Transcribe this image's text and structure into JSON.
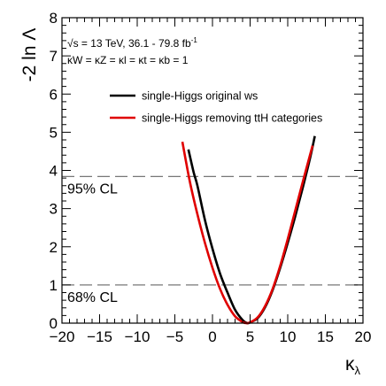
{
  "chart_data": {
    "type": "line",
    "xlabel": "κ",
    "xlabel_sub": "λ",
    "ylabel": "-2 ln Λ",
    "xlim": [
      -20,
      20
    ],
    "ylim": [
      0,
      8
    ],
    "x_ticks": [
      -20,
      -15,
      -10,
      -5,
      0,
      5,
      10,
      15,
      20
    ],
    "x_tick_labels": [
      "−20",
      "−15",
      "−10",
      "−5",
      "0",
      "5",
      "10",
      "15",
      "20"
    ],
    "y_ticks": [
      0,
      1,
      2,
      3,
      4,
      5,
      6,
      7,
      8
    ],
    "y_tick_labels": [
      "0",
      "1",
      "2",
      "3",
      "4",
      "5",
      "6",
      "7",
      "8"
    ],
    "annotations": {
      "line1_pre": "√s = 13 TeV, 36.1 - 79.8 fb",
      "line1_sup": "-1",
      "line2": "κW = κZ = κl = κt = κb = 1"
    },
    "reference_lines": [
      {
        "y": 3.84,
        "label": "95% CL"
      },
      {
        "y": 1.0,
        "label": "68% CL"
      }
    ],
    "legend_position": "top-right",
    "series": [
      {
        "name": "single-Higgs original ws",
        "color": "#000000",
        "x": [
          -3.2,
          -2.5,
          -2.0,
          -1.0,
          0.0,
          1.0,
          2.0,
          3.0,
          4.0,
          4.6,
          5.0,
          6.0,
          7.0,
          8.0,
          9.0,
          10.0,
          11.0,
          12.0,
          13.0,
          13.6
        ],
        "y": [
          4.55,
          3.95,
          3.6,
          2.7,
          1.95,
          1.3,
          0.8,
          0.35,
          0.08,
          0.0,
          0.02,
          0.13,
          0.42,
          0.87,
          1.45,
          2.1,
          2.8,
          3.55,
          4.35,
          4.9
        ]
      },
      {
        "name": "single-Higgs removing ttH categories",
        "color": "#e00000",
        "x": [
          -4.0,
          -3.0,
          -2.0,
          -1.0,
          0.0,
          1.0,
          2.0,
          3.0,
          4.0,
          4.5,
          5.0,
          6.0,
          7.0,
          8.0,
          9.0,
          10.0,
          11.0,
          12.0,
          13.3
        ],
        "y": [
          4.75,
          3.7,
          2.85,
          2.1,
          1.45,
          0.9,
          0.48,
          0.18,
          0.03,
          0.0,
          0.02,
          0.15,
          0.45,
          0.9,
          1.5,
          2.2,
          2.95,
          3.7,
          4.65
        ]
      }
    ]
  }
}
